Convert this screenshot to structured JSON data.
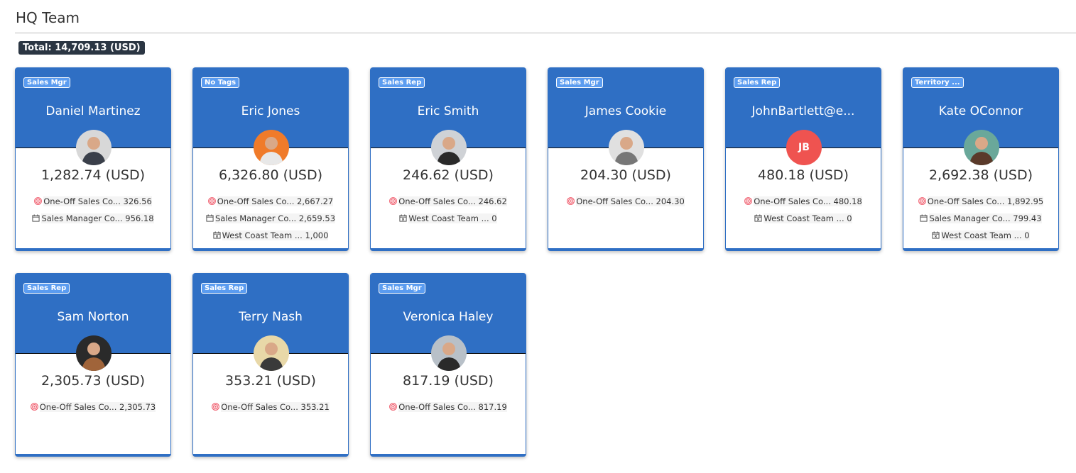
{
  "page": {
    "title": "HQ Team",
    "total": "Total: 14,709.13 (USD)"
  },
  "colors": {
    "header": "#2f6fc4",
    "tag": "#5b9cf0",
    "initials_avatar": "#ef5350"
  },
  "cards": [
    {
      "tag": "Sales Mgr",
      "name": "Daniel Martinez",
      "avatar": {
        "type": "photo",
        "bg": "#d8d8d8",
        "fg": "#3a3f4a"
      },
      "amount": "1,282.74 (USD)",
      "items": [
        {
          "icon": "target-icon",
          "label": "One-Off Sales Co...",
          "value": "326.56"
        },
        {
          "icon": "calendar-icon",
          "label": "Sales Manager Co...",
          "value": "956.18"
        }
      ]
    },
    {
      "tag": "No Tags",
      "name": "Eric Jones",
      "avatar": {
        "type": "photo",
        "bg": "#f07b2a",
        "fg": "#e8e8e8"
      },
      "amount": "6,326.80 (USD)",
      "items": [
        {
          "icon": "target-icon",
          "label": "One-Off Sales Co...",
          "value": "2,667.27"
        },
        {
          "icon": "calendar-icon",
          "label": "Sales Manager Co...",
          "value": "2,659.53"
        },
        {
          "icon": "calendar-x-icon",
          "label": "West Coast Team ...",
          "value": "1,000"
        }
      ]
    },
    {
      "tag": "Sales Rep",
      "name": "Eric Smith",
      "avatar": {
        "type": "photo",
        "bg": "#cfd2d6",
        "fg": "#2a2a2a"
      },
      "amount": "246.62 (USD)",
      "items": [
        {
          "icon": "target-icon",
          "label": "One-Off Sales Co...",
          "value": "246.62"
        },
        {
          "icon": "calendar-x-icon",
          "label": "West Coast Team ...",
          "value": "0"
        }
      ]
    },
    {
      "tag": "Sales Mgr",
      "name": "James Cookie",
      "avatar": {
        "type": "photo",
        "bg": "#e0e0e0",
        "fg": "#777"
      },
      "amount": "204.30 (USD)",
      "items": [
        {
          "icon": "target-icon",
          "label": "One-Off Sales Co...",
          "value": "204.30"
        }
      ]
    },
    {
      "tag": "Sales Rep",
      "name": "JohnBartlett@e...",
      "avatar": {
        "type": "initials",
        "initials": "JB",
        "bg": "#ef5350"
      },
      "amount": "480.18 (USD)",
      "items": [
        {
          "icon": "target-icon",
          "label": "One-Off Sales Co...",
          "value": "480.18"
        },
        {
          "icon": "calendar-x-icon",
          "label": "West Coast Team ...",
          "value": "0"
        }
      ]
    },
    {
      "tag": "Territory ...",
      "name": "Kate OConnor",
      "avatar": {
        "type": "photo",
        "bg": "#6aa89a",
        "fg": "#5a3a2a"
      },
      "amount": "2,692.38 (USD)",
      "items": [
        {
          "icon": "target-icon",
          "label": "One-Off Sales Co...",
          "value": "1,892.95"
        },
        {
          "icon": "calendar-icon",
          "label": "Sales Manager Co...",
          "value": "799.43"
        },
        {
          "icon": "calendar-x-icon",
          "label": "West Coast Team ...",
          "value": "0"
        }
      ]
    },
    {
      "tag": "Sales Rep",
      "name": "Sam Norton",
      "avatar": {
        "type": "photo",
        "bg": "#2a2a2a",
        "fg": "#a0643a"
      },
      "amount": "2,305.73 (USD)",
      "items": [
        {
          "icon": "target-icon",
          "label": "One-Off Sales Co...",
          "value": "2,305.73"
        }
      ]
    },
    {
      "tag": "Sales Rep",
      "name": "Terry Nash",
      "avatar": {
        "type": "photo",
        "bg": "#e8d8a8",
        "fg": "#3a3a3a"
      },
      "amount": "353.21 (USD)",
      "items": [
        {
          "icon": "target-icon",
          "label": "One-Off Sales Co...",
          "value": "353.21"
        }
      ]
    },
    {
      "tag": "Sales Mgr",
      "name": "Veronica Haley",
      "avatar": {
        "type": "photo",
        "bg": "#b8c0c8",
        "fg": "#2a2a2a"
      },
      "amount": "817.19 (USD)",
      "items": [
        {
          "icon": "target-icon",
          "label": "One-Off Sales Co...",
          "value": "817.19"
        }
      ]
    }
  ]
}
